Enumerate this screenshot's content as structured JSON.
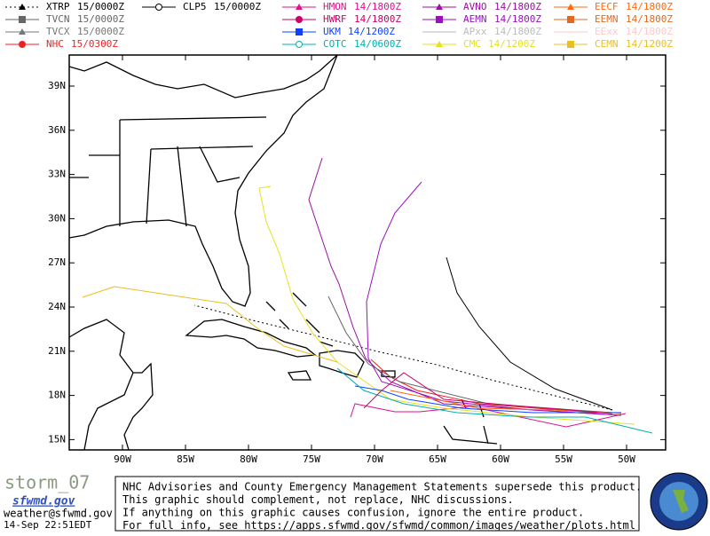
{
  "legend": [
    {
      "model": "XTRP",
      "time": "15/0000Z",
      "color": "#000000",
      "marker": "triangle",
      "dash": true
    },
    {
      "model": "TVCN",
      "time": "15/0000Z",
      "color": "#666666",
      "marker": "square"
    },
    {
      "model": "TVCX",
      "time": "15/0000Z",
      "color": "#777777",
      "marker": "triangle"
    },
    {
      "model": "NHC",
      "time": "15/0300Z",
      "color": "#ee2222",
      "marker": "circle"
    },
    {
      "model": "CLP5",
      "time": "15/0000Z",
      "color": "#000000",
      "marker": "open-circle"
    },
    {
      "model": "HMON",
      "time": "14/1800Z",
      "color": "#e0108f",
      "marker": "triangle"
    },
    {
      "model": "HWRF",
      "time": "14/1800Z",
      "color": "#cc0066",
      "marker": "circle"
    },
    {
      "model": "UKM",
      "time": "14/1200Z",
      "color": "#1040ff",
      "marker": "square"
    },
    {
      "model": "COTC",
      "time": "14/0600Z",
      "color": "#00b0b0",
      "marker": "open-circle"
    },
    {
      "model": "AVNO",
      "time": "14/1800Z",
      "color": "#9a10a0",
      "marker": "triangle"
    },
    {
      "model": "AEMN",
      "time": "14/1800Z",
      "color": "#9a10c0",
      "marker": "square"
    },
    {
      "model": "APxx",
      "time": "14/1800Z",
      "color": "#bbbbbb",
      "marker": "none"
    },
    {
      "model": "CMC",
      "time": "14/1200Z",
      "color": "#e8e020",
      "marker": "triangle"
    },
    {
      "model": "EECF",
      "time": "14/1800Z",
      "color": "#ff6a10",
      "marker": "triangle"
    },
    {
      "model": "EEMN",
      "time": "14/1800Z",
      "color": "#e06a20",
      "marker": "square"
    },
    {
      "model": "EExx",
      "time": "14/1800Z",
      "color": "#ffc8c8",
      "marker": "none"
    },
    {
      "model": "CEMN",
      "time": "14/1200Z",
      "color": "#e8c020",
      "marker": "square"
    }
  ],
  "lat_labels": [
    "39N",
    "36N",
    "33N",
    "30N",
    "27N",
    "24N",
    "21N",
    "18N",
    "15N"
  ],
  "lon_labels": [
    "90W",
    "85W",
    "80W",
    "75W",
    "70W",
    "65W",
    "60W",
    "55W",
    "50W"
  ],
  "footer": {
    "storm": "storm_07",
    "site": "sfwmd.gov",
    "email": "weather@sfwmd.gov",
    "timestamp": "14-Sep 22:51EDT",
    "notice": [
      "NHC Advisories and County Emergency Management Statements supersede this product.",
      "This graphic should complement, not replace, NHC discussions.",
      "If anything on this graphic causes confusion, ignore the entire product.",
      "For full info, see  https://apps.sfwmd.gov/sfwmd/common/images/weather/plots.html"
    ]
  }
}
